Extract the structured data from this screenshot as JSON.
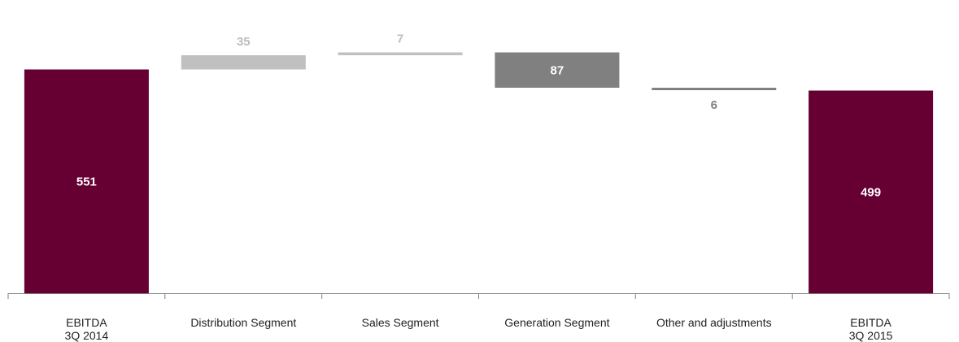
{
  "chart_data": {
    "type": "bar",
    "subtype": "waterfall",
    "title": "",
    "xlabel": "",
    "ylabel": "",
    "grid": false,
    "legend": "none",
    "categories": [
      [
        "EBITDA",
        "3Q 2014"
      ],
      [
        "Distribution Segment"
      ],
      [
        "Sales Segment"
      ],
      [
        "Generation Segment"
      ],
      [
        "Other and adjustments"
      ],
      [
        "EBITDA",
        "3Q 2015"
      ]
    ],
    "steps": [
      {
        "kind": "total",
        "value": 551,
        "label": "551"
      },
      {
        "kind": "delta",
        "value": 35,
        "label": "35"
      },
      {
        "kind": "delta",
        "value": 7,
        "label": "7"
      },
      {
        "kind": "delta",
        "value": -87,
        "label": "87"
      },
      {
        "kind": "delta",
        "value": -6,
        "label": "6"
      },
      {
        "kind": "total",
        "value": 499,
        "label": "499"
      }
    ],
    "ylim": [
      0,
      600
    ],
    "colors": {
      "total": "#660033",
      "increase": "#c0c0c0",
      "decrease": "#808080",
      "label_inside": "#ffffff",
      "label_outside_increase": "#bdbdbd",
      "label_outside_decrease": "#808080",
      "axis": "#808080"
    }
  }
}
